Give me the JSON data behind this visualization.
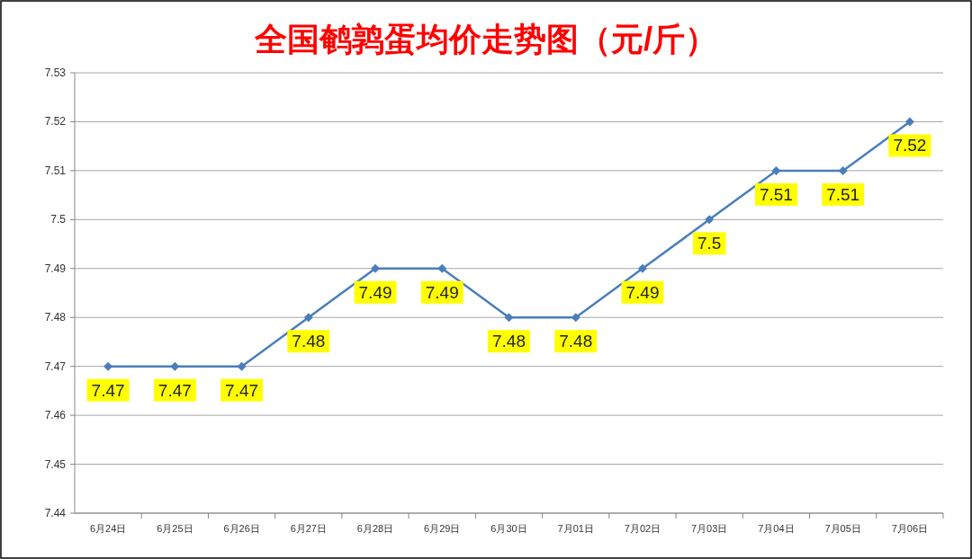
{
  "chart_data": {
    "type": "line",
    "title": "全国鹌鹑蛋均价走势图（元/斤）",
    "categories": [
      "6月24日",
      "6月25日",
      "6月26日",
      "6月27日",
      "6月28日",
      "6月29日",
      "6月30日",
      "7月01日",
      "7月02日",
      "7月03日",
      "7月04日",
      "7月05日",
      "7月06日"
    ],
    "series": [
      {
        "color": "#4a7ebb",
        "values": [
          7.47,
          7.47,
          7.47,
          7.48,
          7.49,
          7.49,
          7.48,
          7.48,
          7.49,
          7.5,
          7.51,
          7.51,
          7.52
        ]
      }
    ],
    "ylim": [
      7.44,
      7.53
    ],
    "yticks": [
      7.44,
      7.45,
      7.46,
      7.47,
      7.48,
      7.49,
      {
        "value": 7.5,
        "label": "7.5"
      },
      7.51,
      7.52,
      7.53
    ],
    "grid": "y",
    "marker": "diamond",
    "line_style": "solid",
    "data_labels": true
  }
}
